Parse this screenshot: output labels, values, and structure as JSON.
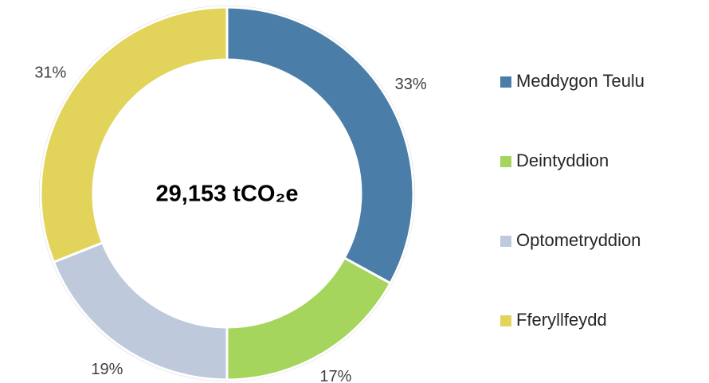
{
  "chart_data": {
    "type": "pie",
    "categories": [
      "Meddygon Teulu",
      "Deintyddion",
      "Optometryddion",
      "Fferyllfeydd"
    ],
    "values": [
      33,
      17,
      19,
      31
    ],
    "value_labels": [
      "33%",
      "17%",
      "19%",
      "31%"
    ],
    "colors": [
      "#4a7ea8",
      "#a5d55c",
      "#bfc9dc",
      "#e2d35a"
    ],
    "center_label": "29,153 tCO₂e",
    "legend_position": "right"
  }
}
